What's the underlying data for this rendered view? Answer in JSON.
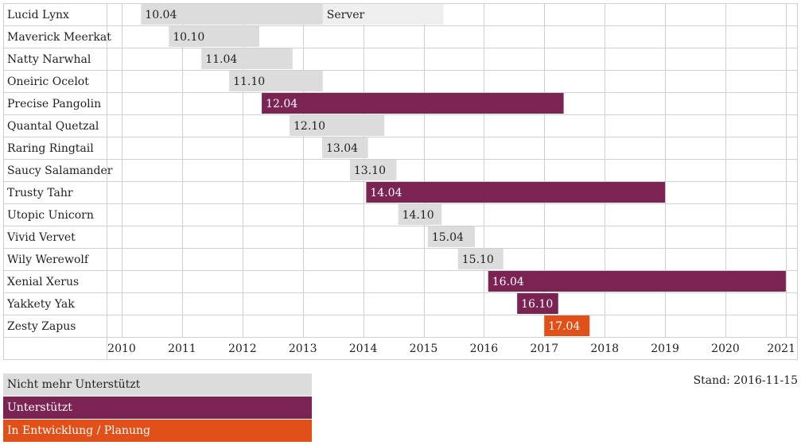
{
  "chart_data": {
    "type": "gantt",
    "x_ticks": [
      "2010",
      "2011",
      "2012",
      "2013",
      "2014",
      "2015",
      "2016",
      "2017",
      "2018",
      "2019",
      "2020",
      "2021"
    ],
    "xlim": [
      2010.0,
      2021.2
    ],
    "rows": [
      {
        "name": "Lucid Lynx",
        "label": "10.04",
        "start": 2010.32,
        "end": 2013.33,
        "status": "unsupported",
        "extra": {
          "label": "Server",
          "end": 2015.33
        }
      },
      {
        "name": "Maverick Meerkat",
        "label": "10.10",
        "start": 2010.78,
        "end": 2012.28,
        "status": "unsupported"
      },
      {
        "name": "Natty Narwhal",
        "label": "11.04",
        "start": 2011.32,
        "end": 2012.83,
        "status": "unsupported"
      },
      {
        "name": "Oneiric Ocelot",
        "label": "11.10",
        "start": 2011.78,
        "end": 2013.33,
        "status": "unsupported"
      },
      {
        "name": "Precise Pangolin",
        "label": "12.04",
        "start": 2012.32,
        "end": 2017.32,
        "status": "supported"
      },
      {
        "name": "Quantal Quetzal",
        "label": "12.10",
        "start": 2012.78,
        "end": 2014.35,
        "status": "unsupported"
      },
      {
        "name": "Raring Ringtail",
        "label": "13.04",
        "start": 2013.32,
        "end": 2014.08,
        "status": "unsupported"
      },
      {
        "name": "Saucy Salamander",
        "label": "13.10",
        "start": 2013.78,
        "end": 2014.55,
        "status": "unsupported"
      },
      {
        "name": "Trusty Tahr",
        "label": "14.04",
        "start": 2014.05,
        "end": 2019.0,
        "status": "supported"
      },
      {
        "name": "Utopic Unicorn",
        "label": "14.10",
        "start": 2014.58,
        "end": 2015.3,
        "status": "unsupported"
      },
      {
        "name": "Vivid Vervet",
        "label": "15.04",
        "start": 2015.07,
        "end": 2015.85,
        "status": "unsupported"
      },
      {
        "name": "Wily Werewolf",
        "label": "15.10",
        "start": 2015.57,
        "end": 2016.32,
        "status": "unsupported"
      },
      {
        "name": "Xenial Xerus",
        "label": "16.04",
        "start": 2016.07,
        "end": 2021.0,
        "status": "supported"
      },
      {
        "name": "Yakkety Yak",
        "label": "16.10",
        "start": 2016.55,
        "end": 2017.23,
        "status": "supported"
      },
      {
        "name": "Zesty Zapus",
        "label": "17.04",
        "start": 2017.0,
        "end": 2017.75,
        "status": "development"
      }
    ]
  },
  "legend": [
    {
      "label": "Nicht mehr Unterstützt",
      "status": "unsupported"
    },
    {
      "label": "Unterstützt",
      "status": "supported"
    },
    {
      "label": "In Entwicklung / Planung",
      "status": "development"
    }
  ],
  "stand": "Stand: 2016-11-15",
  "colors": {
    "unsupported": "#dcdcdc",
    "unsupported_extra": "#efefef",
    "supported": "#7b2352",
    "development": "#e05018",
    "grid": "#d0d0d0",
    "text_dark": "#222222",
    "text_light": "#ffffff"
  }
}
